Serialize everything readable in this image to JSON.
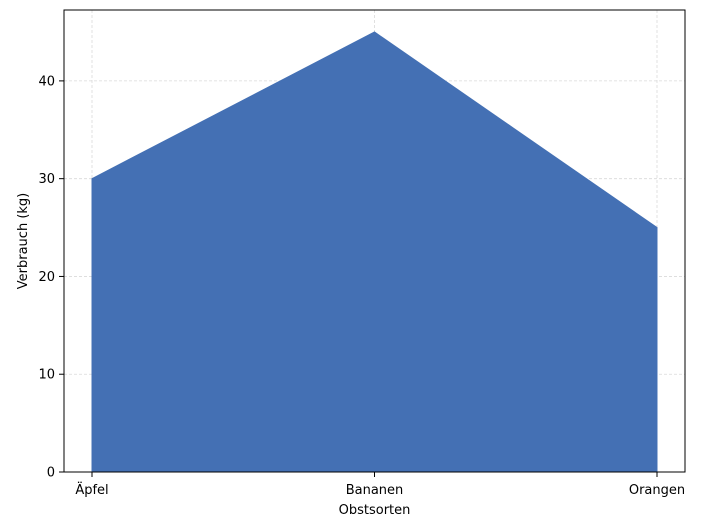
{
  "chart_data": {
    "type": "area",
    "title": "",
    "xlabel": "Obstsorten",
    "ylabel": "Verbrauch (kg)",
    "categories": [
      "Äpfel",
      "Bananen",
      "Orangen"
    ],
    "series": [
      {
        "values": [
          30,
          45,
          25
        ]
      }
    ],
    "ylim": [
      0,
      47.25
    ],
    "yticks": [
      0,
      10,
      20,
      30,
      40
    ],
    "grid": true,
    "legend": "none",
    "colors": {
      "fill": "#4470b4",
      "grid": "#d9d9d9",
      "axis": "#000000"
    }
  }
}
